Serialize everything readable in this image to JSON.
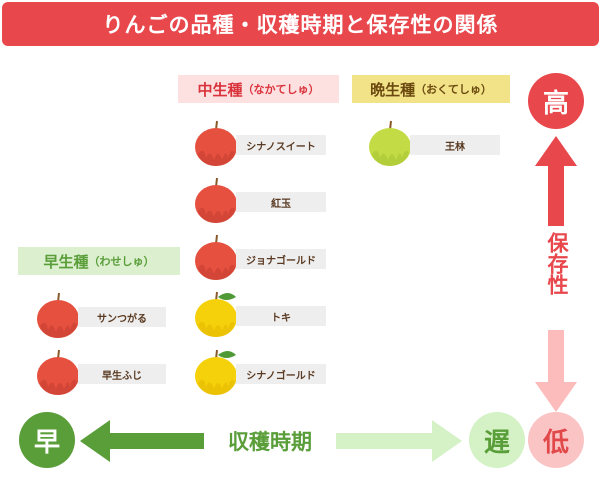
{
  "title": "りんごの品種・収穫時期と保存性の関係",
  "categories": {
    "early": {
      "name": "早生種",
      "reading": "（わせしゅ）",
      "color": "#5a9e3a",
      "bg": "#dcefcf"
    },
    "mid": {
      "name": "中生種",
      "reading": "（なかてしゅ）",
      "color": "#d9333c",
      "bg": "#fde1e1"
    },
    "late": {
      "name": "晩生種",
      "reading": "（おくてしゅ）",
      "color": "#6b4a10",
      "bg": "#f2e388"
    }
  },
  "varieties": {
    "early": [
      {
        "name": "サンつがる",
        "color": "red"
      },
      {
        "name": "早生ふじ",
        "color": "red"
      }
    ],
    "mid": [
      {
        "name": "シナノスイート",
        "color": "red"
      },
      {
        "name": "紅玉",
        "color": "red"
      },
      {
        "name": "ジョナゴールド",
        "color": "red"
      },
      {
        "name": "トキ",
        "color": "yellow"
      },
      {
        "name": "シナノゴールド",
        "color": "yellow"
      }
    ],
    "late": [
      {
        "name": "王林",
        "color": "green"
      }
    ]
  },
  "axes": {
    "storage": {
      "label": "保存性",
      "high": "高",
      "low": "低"
    },
    "harvest": {
      "label": "収穫時期",
      "early": "早",
      "late": "遅"
    }
  },
  "colors": {
    "red_apple": "#e5503f",
    "yellow_apple": "#f4d10a",
    "green_apple": "#c3dc45",
    "accent_red": "#e8474c",
    "accent_green": "#5a9e3a"
  }
}
